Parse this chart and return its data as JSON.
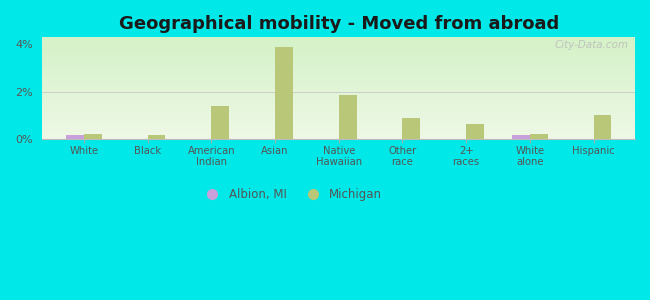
{
  "title": "Geographical mobility - Moved from abroad",
  "categories": [
    "White",
    "Black",
    "American\nIndian",
    "Asian",
    "Native\nHawaiian",
    "Other\nrace",
    "2+\nraces",
    "White\nalone",
    "Hispanic"
  ],
  "albion_values": [
    0.18,
    0.0,
    0.0,
    0.0,
    0.0,
    0.0,
    0.0,
    0.18,
    0.0
  ],
  "michigan_values": [
    0.2,
    0.15,
    1.4,
    3.9,
    1.85,
    0.9,
    0.65,
    0.2,
    1.0
  ],
  "albion_color": "#c9a0dc",
  "michigan_color": "#b8c878",
  "background_color": "#00e8e8",
  "ylim": [
    0,
    4.3
  ],
  "yticks": [
    0,
    2,
    4
  ],
  "ytick_labels": [
    "0%",
    "2%",
    "4%"
  ],
  "bar_width": 0.28,
  "title_fontsize": 13,
  "legend_albion": "Albion, MI",
  "legend_michigan": "Michigan",
  "watermark": "City-Data.com"
}
